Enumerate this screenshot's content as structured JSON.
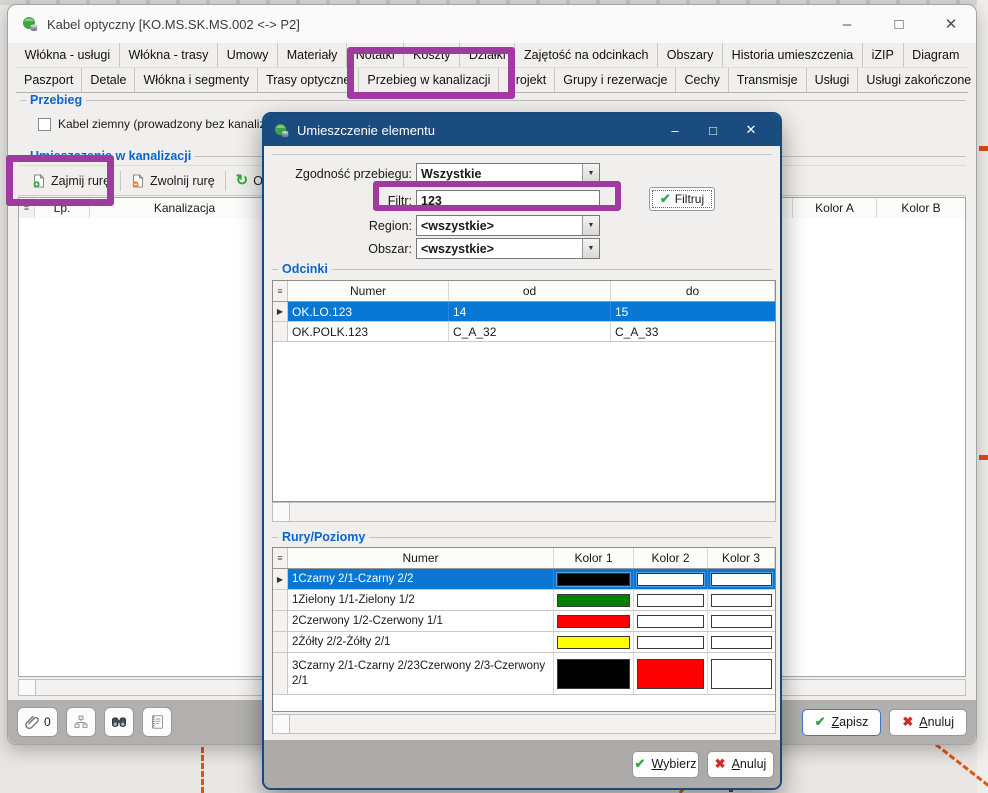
{
  "icons": {
    "minimize": "–",
    "maximize": "□",
    "close": "✕",
    "check": "✔",
    "cross": "✖",
    "refresh": "↻",
    "dropdown": "▼",
    "selector": "≡",
    "row_marker": "▶"
  },
  "main_window": {
    "title": "Kabel optyczny [KO.MS.SK.MS.002 <-> P2]",
    "tabs_row1": [
      "Włókna - usługi",
      "Włókna - trasy",
      "Umowy",
      "Materiały",
      "Notatki",
      "Koszty",
      "Działki",
      "Zajętość na odcinkach",
      "Obszary",
      "Historia umieszczenia",
      "iZIP",
      "Diagram"
    ],
    "tabs_row2": [
      "Paszport",
      "Detale",
      "Włókna i segmenty",
      "Trasy optyczne",
      "Przebieg w kanalizacji",
      "Projekt",
      "Grupy i rezerwacje",
      "Cechy",
      "Transmisje",
      "Usługi",
      "Usługi zakończone"
    ],
    "active_tab": "Przebieg w kanalizacji",
    "przebieg_group": {
      "label": "Przebieg",
      "checkbox_label": "Kabel ziemny (prowadzony bez kanalizacji)",
      "checkbox_checked": false
    },
    "kanalizacja_group": {
      "label": "Umieszczenie w kanalizacji",
      "toolbar": {
        "zajmij": "Zajmij rurę",
        "zwolnij": "Zwolnij rurę",
        "odswiez": "Odśwież"
      },
      "columns": {
        "lp": "Lp.",
        "kanalizacja": "Kanalizacja",
        "kolor_a": "Kolor A",
        "kolor_b": "Kolor B"
      }
    },
    "footer": {
      "attachments_count": "0",
      "zapisz": "Zapisz",
      "anuluj": "Anuluj"
    }
  },
  "dialog": {
    "title": "Umieszczenie elementu",
    "form": {
      "zgodnosc_label": "Zgodność przebiegu:",
      "zgodnosc_value": "Wszystkie",
      "filtr_label": "Filtr:",
      "filtr_value": "123",
      "region_label": "Region:",
      "region_value": "<wszystkie>",
      "obszar_label": "Obszar:",
      "obszar_value": "<wszystkie>",
      "filtruj_button": "Filtruj"
    },
    "odcinki": {
      "label": "Odcinki",
      "columns": [
        "Numer",
        "od",
        "do"
      ],
      "selected_row": 0,
      "rows": [
        {
          "numer": "OK.LO.123",
          "od": "14",
          "do": "15"
        },
        {
          "numer": "OK.POLK.123",
          "od": "C_A_32",
          "do": "C_A_33"
        }
      ]
    },
    "rury": {
      "label": "Rury/Poziomy",
      "columns": [
        "Numer",
        "Kolor 1",
        "Kolor 2",
        "Kolor 3"
      ],
      "selected_row": 0,
      "rows": [
        {
          "numer": "1Czarny 2/1-Czarny 2/2",
          "kolor1": "#000000",
          "kolor2": "#FFFFFF",
          "kolor3": "#FFFFFF"
        },
        {
          "numer": "1Zielony 1/1-Zielony 1/2",
          "kolor1": "#008000",
          "kolor2": "#FFFFFF",
          "kolor3": "#FFFFFF"
        },
        {
          "numer": "2Czerwony 1/2-Czerwony 1/1",
          "kolor1": "#FF0000",
          "kolor2": "#FFFFFF",
          "kolor3": "#FFFFFF"
        },
        {
          "numer": "2Żółty 2/2-Żółty 2/1",
          "kolor1": "#FFFF00",
          "kolor2": "#FFFFFF",
          "kolor3": "#FFFFFF"
        },
        {
          "numer": "3Czarny 2/1-Czarny 2/23Czerwony 2/3-Czerwony 2/1",
          "kolor1": "#000000",
          "kolor2": "#FF0000",
          "kolor3": "#FFFFFF"
        }
      ]
    },
    "footer": {
      "wybierz": "Wybierz",
      "anuluj": "Anuluj"
    }
  },
  "annotation": {
    "color": "#A03AA0"
  }
}
